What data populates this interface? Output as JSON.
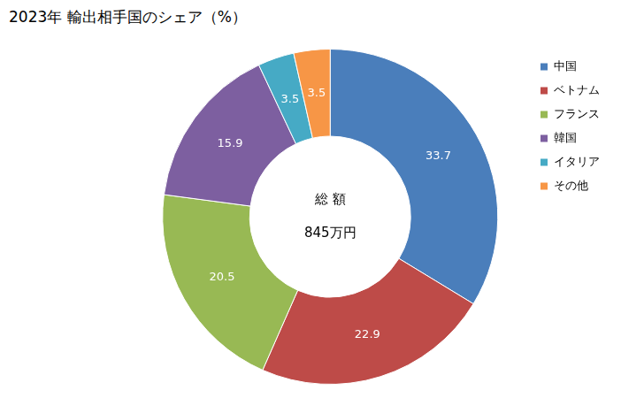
{
  "chart_data": {
    "type": "doughnut",
    "title": "2023年 輸出相手国のシェア（%）",
    "categories": [
      "中国",
      "ベトナム",
      "フランス",
      "韓国",
      "イタリア",
      "その他"
    ],
    "values": [
      33.7,
      22.9,
      20.5,
      15.9,
      3.5,
      3.5
    ],
    "colors": [
      "#4a7ebb",
      "#be4b48",
      "#98b954",
      "#7d5fa0",
      "#46aac5",
      "#f79646"
    ],
    "annotations": [
      "総 額",
      "845万円"
    ],
    "legend": "right",
    "data_labels": true
  }
}
